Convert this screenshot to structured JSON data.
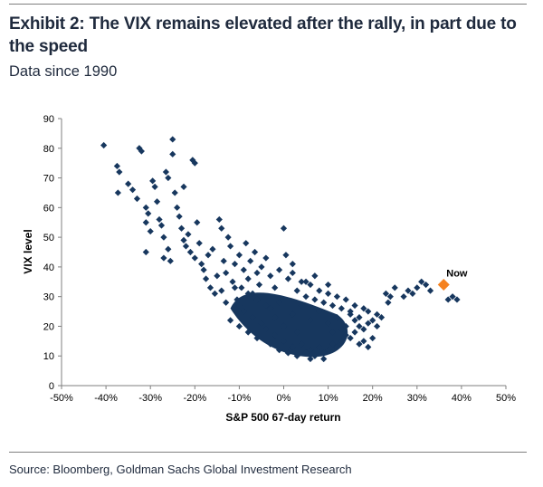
{
  "header": {
    "title": "Exhibit 2: The VIX remains elevated after the rally, in part due to the speed",
    "subtitle": "Data since 1990"
  },
  "footer": {
    "source": "Source: Bloomberg, Goldman Sachs Global Investment Research"
  },
  "chart_data": {
    "type": "scatter",
    "xlabel": "S&P 500 67-day return",
    "ylabel": "VIX level",
    "xlim": [
      -50,
      50
    ],
    "ylim": [
      0,
      90
    ],
    "x_ticks": [
      "-50%",
      "-40%",
      "-30%",
      "-20%",
      "-10%",
      "0%",
      "10%",
      "20%",
      "30%",
      "40%",
      "50%"
    ],
    "y_ticks": [
      "0",
      "10",
      "20",
      "30",
      "40",
      "50",
      "60",
      "70",
      "80",
      "90"
    ],
    "grid": false,
    "legend": "none",
    "colors": {
      "history": "#17375e",
      "now": "#f58220"
    },
    "series": [
      {
        "points": [
          [
            -40.5,
            81
          ],
          [
            -37.5,
            74
          ],
          [
            -37,
            72
          ],
          [
            -37.3,
            65
          ],
          [
            -35,
            68
          ],
          [
            -34,
            66
          ],
          [
            -33,
            63
          ],
          [
            -32.5,
            80
          ],
          [
            -32,
            79
          ],
          [
            -31,
            60
          ],
          [
            -30.5,
            58
          ],
          [
            -31,
            55
          ],
          [
            -30,
            52
          ],
          [
            -31,
            45
          ],
          [
            -29.5,
            69
          ],
          [
            -29,
            67
          ],
          [
            -28.5,
            62
          ],
          [
            -28,
            56
          ],
          [
            -27.5,
            54
          ],
          [
            -27,
            50
          ],
          [
            -27,
            43
          ],
          [
            -26.5,
            72
          ],
          [
            -26,
            70
          ],
          [
            -26,
            46
          ],
          [
            -25.5,
            42
          ],
          [
            -25,
            83
          ],
          [
            -25,
            78
          ],
          [
            -24.5,
            65
          ],
          [
            -24,
            60
          ],
          [
            -23.5,
            57
          ],
          [
            -23,
            53
          ],
          [
            -22.5,
            49
          ],
          [
            -22,
            47
          ],
          [
            -22.5,
            67
          ],
          [
            -21.5,
            51
          ],
          [
            -21,
            45
          ],
          [
            -20.5,
            76
          ],
          [
            -20,
            75
          ],
          [
            -20,
            43
          ],
          [
            -19.5,
            55
          ],
          [
            -19,
            48
          ],
          [
            -18.5,
            41
          ],
          [
            -18,
            39
          ],
          [
            -17.5,
            36
          ],
          [
            -17,
            44
          ],
          [
            -16.5,
            33
          ],
          [
            -16,
            46
          ],
          [
            -15.5,
            31
          ],
          [
            -15,
            37
          ],
          [
            -14.5,
            56
          ],
          [
            -14,
            53
          ],
          [
            -13.5,
            42
          ],
          [
            -13,
            38
          ],
          [
            -12.5,
            50
          ],
          [
            -12,
            47
          ],
          [
            -11.5,
            35
          ],
          [
            -11,
            41
          ],
          [
            -10.5,
            29
          ],
          [
            -10,
            44
          ],
          [
            -9.5,
            33
          ],
          [
            -9,
            39
          ],
          [
            -8.5,
            48
          ],
          [
            -8,
            36
          ],
          [
            -7.5,
            42
          ],
          [
            -7,
            31
          ],
          [
            -6.5,
            45
          ],
          [
            -6,
            38
          ],
          [
            -5.5,
            34
          ],
          [
            -5,
            40
          ],
          [
            -4,
            43
          ],
          [
            -3,
            37
          ],
          [
            -2,
            33
          ],
          [
            -1,
            39
          ],
          [
            0,
            53
          ],
          [
            0.5,
            44
          ],
          [
            1,
            36
          ],
          [
            2,
            38
          ],
          [
            3,
            32
          ],
          [
            4,
            35
          ],
          [
            5,
            30
          ],
          [
            6,
            34
          ],
          [
            7,
            29
          ],
          [
            8,
            32
          ],
          [
            9,
            28
          ],
          [
            10,
            31
          ],
          [
            11,
            27
          ],
          [
            12,
            30
          ],
          [
            13,
            26
          ],
          [
            14,
            29
          ],
          [
            15,
            24
          ],
          [
            16,
            27
          ],
          [
            17,
            23
          ],
          [
            18,
            26
          ],
          [
            19,
            25
          ],
          [
            20,
            22
          ],
          [
            21,
            24
          ],
          [
            22,
            23
          ],
          [
            23,
            31
          ],
          [
            23.5,
            28
          ],
          [
            24,
            30
          ],
          [
            25,
            33
          ],
          [
            27,
            30
          ],
          [
            28,
            32
          ],
          [
            29,
            31
          ],
          [
            30,
            33
          ],
          [
            31,
            35
          ],
          [
            32,
            34
          ],
          [
            33,
            32
          ],
          [
            37,
            29
          ],
          [
            38,
            30
          ],
          [
            39,
            29
          ],
          [
            -12,
            22
          ],
          [
            -10,
            20
          ],
          [
            -9,
            25
          ],
          [
            -8,
            18
          ],
          [
            -7,
            23
          ],
          [
            -6,
            16
          ],
          [
            -5,
            21
          ],
          [
            -4,
            19
          ],
          [
            -3,
            14
          ],
          [
            -2,
            17
          ],
          [
            -1,
            12
          ],
          [
            0,
            15
          ],
          [
            1,
            11
          ],
          [
            2,
            13
          ],
          [
            3,
            10
          ],
          [
            4,
            14
          ],
          [
            5,
            11
          ],
          [
            6,
            12
          ],
          [
            7,
            10
          ],
          [
            8,
            13
          ],
          [
            9,
            11
          ],
          [
            10,
            12
          ],
          [
            11,
            14
          ],
          [
            12,
            13
          ],
          [
            13,
            15
          ],
          [
            14,
            17
          ],
          [
            15,
            16
          ],
          [
            16,
            18
          ],
          [
            17,
            20
          ],
          [
            18,
            19
          ],
          [
            19,
            21
          ],
          [
            -3,
            26
          ],
          [
            -1,
            28
          ],
          [
            2,
            24
          ],
          [
            4,
            27
          ],
          [
            6,
            22
          ],
          [
            8,
            25
          ],
          [
            10,
            21
          ],
          [
            12,
            23
          ],
          [
            14,
            20
          ],
          [
            16,
            22
          ],
          [
            18,
            15
          ],
          [
            9,
            9
          ],
          [
            6,
            9
          ],
          [
            3,
            18
          ],
          [
            0,
            20
          ],
          [
            -2,
            23
          ],
          [
            -4,
            27
          ],
          [
            -6,
            29
          ],
          [
            -8,
            31
          ],
          [
            -10,
            27
          ],
          [
            11,
            18
          ],
          [
            13,
            19
          ],
          [
            15,
            25
          ],
          [
            17,
            14
          ],
          [
            19,
            13
          ],
          [
            21,
            20
          ],
          [
            20,
            16
          ],
          [
            10,
            34
          ],
          [
            7,
            37
          ],
          [
            5,
            35
          ],
          [
            2,
            41
          ],
          [
            -11,
            33
          ],
          [
            -13,
            28
          ],
          [
            -14,
            32
          ]
        ]
      },
      {
        "name": "Now",
        "points": [
          [
            36,
            34
          ]
        ]
      }
    ],
    "annotations": [
      {
        "text": "Now",
        "x": 36,
        "y": 34
      }
    ]
  }
}
